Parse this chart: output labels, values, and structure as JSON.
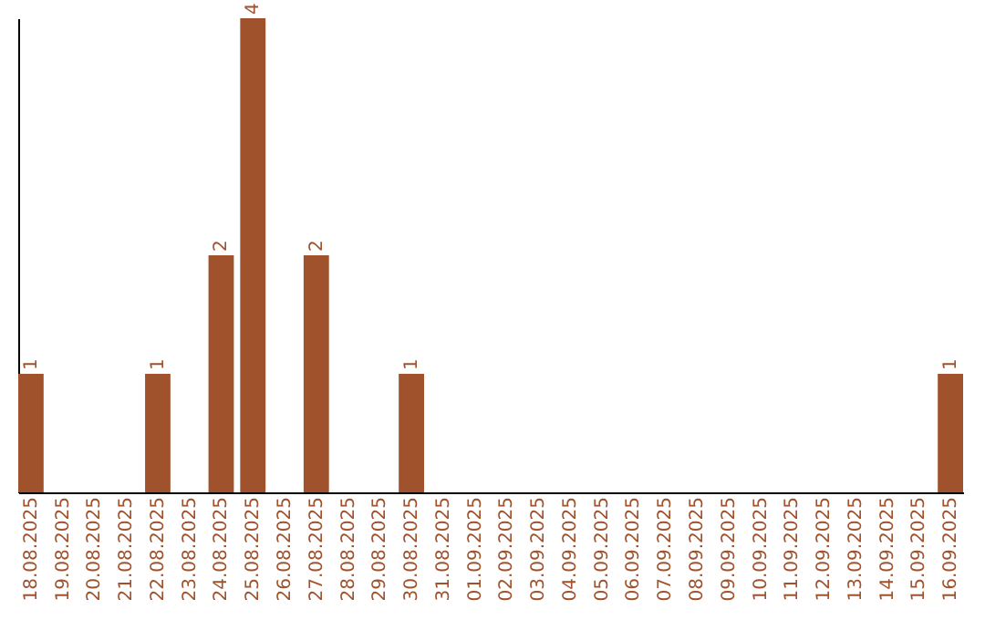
{
  "chart_data": {
    "type": "bar",
    "categories": [
      "18.08.2025",
      "19.08.2025",
      "20.08.2025",
      "21.08.2025",
      "22.08.2025",
      "23.08.2025",
      "24.08.2025",
      "25.08.2025",
      "26.08.2025",
      "27.08.2025",
      "28.08.2025",
      "29.08.2025",
      "30.08.2025",
      "31.08.2025",
      "01.09.2025",
      "02.09.2025",
      "03.09.2025",
      "04.09.2025",
      "05.09.2025",
      "06.09.2025",
      "07.09.2025",
      "08.09.2025",
      "09.09.2025",
      "10.09.2025",
      "11.09.2025",
      "12.09.2025",
      "13.09.2025",
      "14.09.2025",
      "15.09.2025",
      "16.09.2025"
    ],
    "values": [
      1,
      0,
      0,
      0,
      1,
      0,
      2,
      4,
      0,
      2,
      0,
      0,
      1,
      0,
      0,
      0,
      0,
      0,
      0,
      0,
      0,
      0,
      0,
      0,
      0,
      0,
      0,
      0,
      0,
      1
    ],
    "value_labels": [
      "1",
      null,
      null,
      null,
      "1",
      null,
      "2",
      "4",
      null,
      "2",
      null,
      null,
      "1",
      null,
      null,
      null,
      null,
      null,
      null,
      null,
      null,
      null,
      null,
      null,
      null,
      null,
      null,
      null,
      null,
      "1"
    ],
    "color": "#a0522d",
    "grid": false
  }
}
